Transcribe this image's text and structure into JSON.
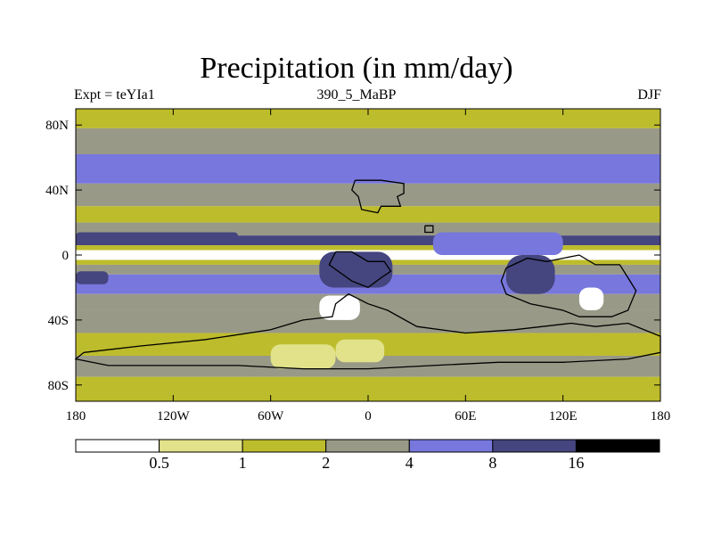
{
  "chart_data": {
    "type": "heatmap",
    "title": "Precipitation (in mm/day)",
    "subtitle_left": "Expt = teYIa1",
    "subtitle_center": "390_5_MaBP",
    "subtitle_right": "DJF",
    "xlabel": "",
    "ylabel": "",
    "xlim": [
      -180,
      180
    ],
    "ylim": [
      -90,
      90
    ],
    "x_ticks": [
      {
        "value": -180,
        "label": "180"
      },
      {
        "value": -120,
        "label": "120W"
      },
      {
        "value": -60,
        "label": "60W"
      },
      {
        "value": 0,
        "label": "0"
      },
      {
        "value": 60,
        "label": "60E"
      },
      {
        "value": 120,
        "label": "120E"
      },
      {
        "value": 180,
        "label": "180"
      }
    ],
    "y_ticks": [
      {
        "value": 80,
        "label": "80N"
      },
      {
        "value": 40,
        "label": "40N"
      },
      {
        "value": 0,
        "label": "0"
      },
      {
        "value": -40,
        "label": "40S"
      },
      {
        "value": -80,
        "label": "80S"
      }
    ],
    "levels": [
      0.5,
      1,
      2,
      4,
      8,
      16
    ],
    "level_labels": [
      "0.5",
      "1",
      "2",
      "4",
      "8",
      "16"
    ],
    "colors": [
      "#ffffff",
      "#e1e28a",
      "#bdbc2c",
      "#999988",
      "#7777dd",
      "#45457f",
      "#000000"
    ],
    "zonal_profile": [
      {
        "lat_min": 78,
        "lat_max": 90,
        "value": 1.5
      },
      {
        "lat_min": 62,
        "lat_max": 78,
        "value": 3.0
      },
      {
        "lat_min": 44,
        "lat_max": 62,
        "value": 5.0
      },
      {
        "lat_min": 30,
        "lat_max": 44,
        "value": 3.0
      },
      {
        "lat_min": 20,
        "lat_max": 30,
        "value": 1.5
      },
      {
        "lat_min": 12,
        "lat_max": 20,
        "value": 3.0
      },
      {
        "lat_min": 6,
        "lat_max": 12,
        "value": 10.0
      },
      {
        "lat_min": 3,
        "lat_max": 6,
        "value": 1.5
      },
      {
        "lat_min": -3,
        "lat_max": 3,
        "value": 0.3
      },
      {
        "lat_min": -6,
        "lat_max": -3,
        "value": 1.5
      },
      {
        "lat_min": -12,
        "lat_max": -6,
        "value": 3.0
      },
      {
        "lat_min": -24,
        "lat_max": -12,
        "value": 5.0
      },
      {
        "lat_min": -34,
        "lat_max": -24,
        "value": 3.0
      },
      {
        "lat_min": -48,
        "lat_max": -34,
        "value": 3.0
      },
      {
        "lat_min": -62,
        "lat_max": -48,
        "value": 1.5
      },
      {
        "lat_min": -75,
        "lat_max": -62,
        "value": 3.0
      },
      {
        "lat_min": -90,
        "lat_max": -75,
        "value": 1.5
      }
    ],
    "regional_features": [
      {
        "name": "wet-pool-southwest-pacific",
        "lon_min": -180,
        "lon_max": -160,
        "lat_min": -18,
        "lat_max": -10,
        "value": 10.0
      },
      {
        "name": "equatorial-wet-band-west",
        "lon_min": -180,
        "lon_max": -80,
        "lat_min": 8,
        "lat_max": 14,
        "value": 10.0
      },
      {
        "name": "wet-center-tethys",
        "lon_min": -30,
        "lon_max": 15,
        "lat_min": -20,
        "lat_max": 2,
        "value": 10.0
      },
      {
        "name": "wet-center-east",
        "lon_min": 85,
        "lon_max": 115,
        "lat_min": -24,
        "lat_max": 0,
        "value": 10.0
      },
      {
        "name": "wet-band-east",
        "lon_min": 40,
        "lon_max": 120,
        "lat_min": 0,
        "lat_max": 14,
        "value": 5.0
      },
      {
        "name": "dry-patch-southern-continent",
        "lon_min": -30,
        "lon_max": -5,
        "lat_min": -40,
        "lat_max": -25,
        "value": 0.3
      },
      {
        "name": "dry-patch-east",
        "lon_min": 130,
        "lon_max": 145,
        "lat_min": -34,
        "lat_max": -20,
        "value": 0.3
      },
      {
        "name": "dry-patch-south-low",
        "lon_min": -60,
        "lon_max": -20,
        "lat_min": -70,
        "lat_max": -55,
        "value": 0.8
      },
      {
        "name": "dry-patch-south-low-2",
        "lon_min": -20,
        "lon_max": 10,
        "lat_min": -66,
        "lat_max": -52,
        "value": 0.8
      },
      {
        "name": "dry-patch-northern",
        "lon_min": -120,
        "lon_max": -60,
        "lat_min": 22,
        "lat_max": 30,
        "value": 1.5
      },
      {
        "name": "dry-patch-northern-2",
        "lon_min": 30,
        "lon_max": 100,
        "lat_min": 20,
        "lat_max": 28,
        "value": 1.5
      }
    ],
    "coastlines": [
      {
        "name": "northern-landmass",
        "points": [
          [
            -8,
            46
          ],
          [
            8,
            46
          ],
          [
            22,
            44
          ],
          [
            22,
            38
          ],
          [
            18,
            36
          ],
          [
            20,
            30
          ],
          [
            8,
            30
          ],
          [
            6,
            26
          ],
          [
            -4,
            28
          ],
          [
            -6,
            36
          ],
          [
            -10,
            40
          ],
          [
            -8,
            46
          ]
        ]
      },
      {
        "name": "island-north-east",
        "points": [
          [
            35,
            18
          ],
          [
            40,
            18
          ],
          [
            40,
            14
          ],
          [
            35,
            14
          ],
          [
            35,
            18
          ]
        ]
      },
      {
        "name": "central-continent",
        "points": [
          [
            -20,
            2
          ],
          [
            -10,
            2
          ],
          [
            0,
            -4
          ],
          [
            10,
            -4
          ],
          [
            14,
            -10
          ],
          [
            8,
            -14
          ],
          [
            0,
            -20
          ],
          [
            -10,
            -16
          ],
          [
            -24,
            -6
          ],
          [
            -20,
            2
          ]
        ]
      },
      {
        "name": "southern-continent",
        "points": [
          [
            -175,
            -60
          ],
          [
            -140,
            -56
          ],
          [
            -100,
            -52
          ],
          [
            -60,
            -46
          ],
          [
            -40,
            -40
          ],
          [
            -22,
            -38
          ],
          [
            -20,
            -30
          ],
          [
            -12,
            -24
          ],
          [
            0,
            -30
          ],
          [
            12,
            -34
          ],
          [
            30,
            -44
          ],
          [
            60,
            -48
          ],
          [
            90,
            -46
          ],
          [
            125,
            -42
          ],
          [
            140,
            -44
          ],
          [
            160,
            -42
          ],
          [
            175,
            -48
          ],
          [
            180,
            -50
          ],
          [
            180,
            -60
          ],
          [
            160,
            -64
          ],
          [
            120,
            -66
          ],
          [
            80,
            -66
          ],
          [
            40,
            -68
          ],
          [
            0,
            -70
          ],
          [
            -40,
            -70
          ],
          [
            -80,
            -68
          ],
          [
            -120,
            -68
          ],
          [
            -160,
            -68
          ],
          [
            -180,
            -64
          ],
          [
            -175,
            -60
          ]
        ]
      },
      {
        "name": "eastern-continent",
        "points": [
          [
            85,
            -8
          ],
          [
            98,
            -2
          ],
          [
            110,
            -4
          ],
          [
            120,
            -2
          ],
          [
            130,
            0
          ],
          [
            140,
            -6
          ],
          [
            155,
            -6
          ],
          [
            160,
            -14
          ],
          [
            165,
            -22
          ],
          [
            160,
            -34
          ],
          [
            150,
            -38
          ],
          [
            130,
            -38
          ],
          [
            120,
            -34
          ],
          [
            100,
            -30
          ],
          [
            85,
            -24
          ],
          [
            82,
            -16
          ],
          [
            85,
            -8
          ]
        ]
      }
    ]
  }
}
